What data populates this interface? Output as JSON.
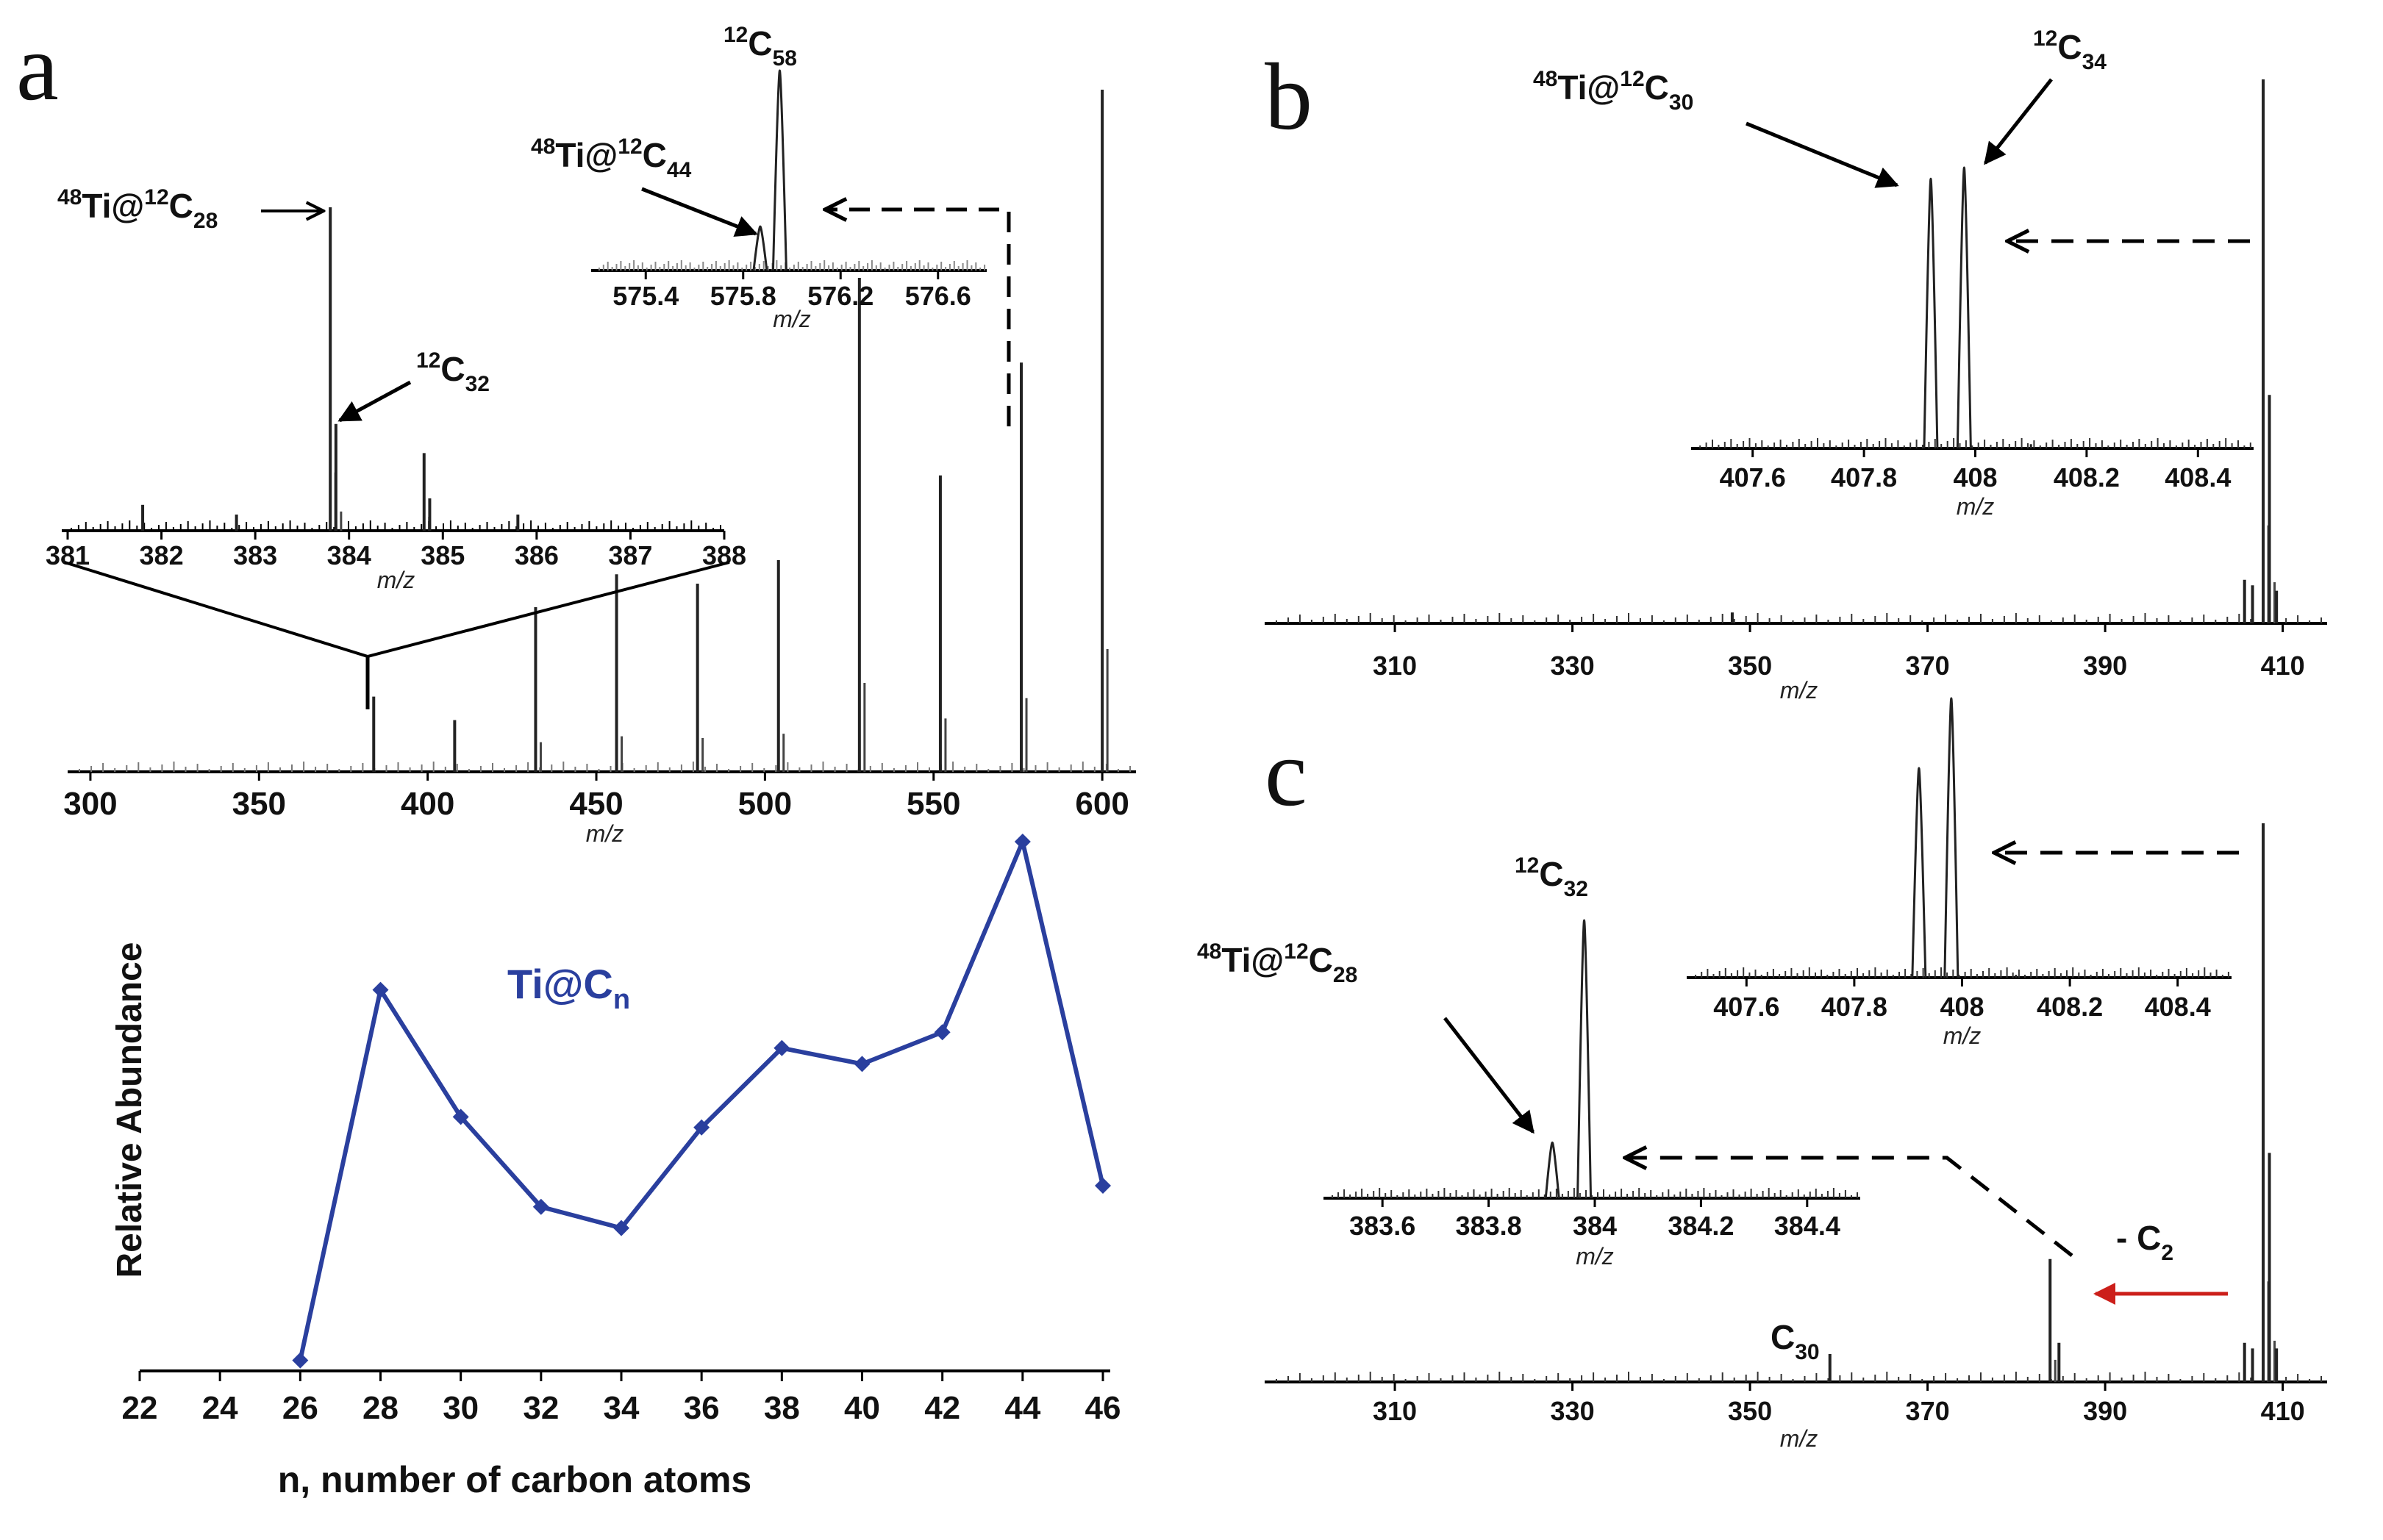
{
  "panels": {
    "a": {
      "label": "a"
    },
    "b": {
      "label": "b"
    },
    "c": {
      "label": "c"
    }
  },
  "annotations": {
    "ti28": {
      "iso": "48",
      "t1": "Ti@",
      "iso2": "12",
      "t2": "C",
      "sub": "28"
    },
    "c32": {
      "iso": "12",
      "t": "C",
      "sub": "32"
    },
    "ti44": {
      "iso": "48",
      "t1": "Ti@",
      "iso2": "12",
      "t2": "C",
      "sub": "44"
    },
    "c58": {
      "iso": "12",
      "t": "C",
      "sub": "58"
    },
    "ti30": {
      "iso": "48",
      "t1": "Ti@",
      "iso2": "12",
      "t2": "C",
      "sub": "30"
    },
    "c34": {
      "iso": "12",
      "t": "C",
      "sub": "34"
    },
    "c_c32": {
      "iso": "12",
      "t": "C",
      "sub": "32"
    },
    "c_ti28": {
      "iso": "48",
      "t1": "Ti@",
      "iso2": "12",
      "t2": "C",
      "sub": "28"
    },
    "c30": {
      "t": "C",
      "sub": "30"
    },
    "minus_c2": {
      "t": "- C",
      "sub": "2",
      "color": "#cc1f1a"
    }
  },
  "chart_data": [
    {
      "id": "a-main",
      "type": "line",
      "title": "",
      "xlabel": "m/z",
      "xlim": [
        295,
        610
      ],
      "xticks": [
        300,
        350,
        400,
        450,
        500,
        550,
        600
      ],
      "peaks": [
        {
          "x": 384,
          "y": 0.16
        },
        {
          "x": 408,
          "y": 0.11
        },
        {
          "x": 432,
          "y": 0.35
        },
        {
          "x": 456,
          "y": 0.42
        },
        {
          "x": 480,
          "y": 0.4
        },
        {
          "x": 504,
          "y": 0.45
        },
        {
          "x": 528,
          "y": 1.05
        },
        {
          "x": 552,
          "y": 0.63
        },
        {
          "x": 576,
          "y": 0.87
        },
        {
          "x": 600,
          "y": 1.45
        }
      ]
    },
    {
      "id": "a-inset-left",
      "type": "line",
      "xlabel": "m/z",
      "xlim": [
        381,
        388
      ],
      "xticks": [
        381,
        382,
        383,
        384,
        385,
        386,
        387,
        388
      ],
      "peaks": [
        {
          "x": 381.8,
          "y": 0.08
        },
        {
          "x": 382.8,
          "y": 0.05
        },
        {
          "x": 383.8,
          "y": 1.0
        },
        {
          "x": 383.86,
          "y": 0.33
        },
        {
          "x": 384.8,
          "y": 0.24
        },
        {
          "x": 384.86,
          "y": 0.1
        },
        {
          "x": 385.8,
          "y": 0.05
        }
      ]
    },
    {
      "id": "a-inset-top",
      "type": "line",
      "xlabel": "m/z",
      "xlim": [
        575.2,
        576.8
      ],
      "xticks": [
        575.4,
        575.8,
        576.2,
        576.6
      ],
      "peaks": [
        {
          "x": 575.87,
          "y": 0.22
        },
        {
          "x": 575.95,
          "y": 1.0
        }
      ]
    },
    {
      "id": "a-bottom",
      "type": "line",
      "title": "Ti@Cn",
      "xlabel": "n, number of carbon atoms",
      "ylabel": "Relative Abundance",
      "xlim": [
        22,
        46
      ],
      "ylim": [
        0,
        1
      ],
      "xticks": [
        22,
        24,
        26,
        28,
        30,
        32,
        34,
        36,
        38,
        40,
        42,
        44,
        46
      ],
      "x": [
        26,
        28,
        30,
        32,
        34,
        36,
        38,
        40,
        42,
        44,
        46
      ],
      "y": [
        0.02,
        0.72,
        0.48,
        0.31,
        0.27,
        0.46,
        0.61,
        0.58,
        0.64,
        1.0,
        0.35
      ],
      "color": "#2a3f9e"
    },
    {
      "id": "b-main",
      "type": "line",
      "xlabel": "m/z",
      "xlim": [
        296,
        415
      ],
      "xticks": [
        310,
        330,
        350,
        370,
        390,
        410
      ],
      "peaks": [
        {
          "x": 348,
          "y": 0.02
        },
        {
          "x": 405.7,
          "y": 0.08
        },
        {
          "x": 406.6,
          "y": 0.07
        },
        {
          "x": 407.8,
          "y": 1.0
        },
        {
          "x": 408.5,
          "y": 0.42
        },
        {
          "x": 409.3,
          "y": 0.06
        }
      ]
    },
    {
      "id": "b-inset",
      "type": "line",
      "xlabel": "m/z",
      "xlim": [
        407.5,
        408.5
      ],
      "xticks": [
        407.6,
        407.8,
        408,
        408.2,
        408.4
      ],
      "peaks": [
        {
          "x": 407.92,
          "y": 0.96
        },
        {
          "x": 407.98,
          "y": 1.0
        },
        {
          "x": 408.1,
          "y": 0.015
        }
      ]
    },
    {
      "id": "c-main",
      "type": "line",
      "xlabel": "m/z",
      "xlim": [
        296,
        415
      ],
      "xticks": [
        310,
        330,
        350,
        370,
        390,
        410
      ],
      "peaks": [
        {
          "x": 359,
          "y": 0.05
        },
        {
          "x": 383.8,
          "y": 0.22
        },
        {
          "x": 384.8,
          "y": 0.07
        },
        {
          "x": 405.7,
          "y": 0.07
        },
        {
          "x": 406.6,
          "y": 0.06
        },
        {
          "x": 407.8,
          "y": 1.0
        },
        {
          "x": 408.5,
          "y": 0.41
        },
        {
          "x": 409.3,
          "y": 0.06
        }
      ]
    },
    {
      "id": "c-inset-top",
      "type": "line",
      "xlabel": "m/z",
      "xlim": [
        407.5,
        408.5
      ],
      "xticks": [
        407.6,
        407.8,
        408,
        408.2,
        408.4
      ],
      "peaks": [
        {
          "x": 407.92,
          "y": 0.75
        },
        {
          "x": 407.98,
          "y": 1.0
        },
        {
          "x": 408.1,
          "y": 0.01
        }
      ]
    },
    {
      "id": "c-inset-left",
      "type": "line",
      "xlabel": "m/z",
      "xlim": [
        383.5,
        384.5
      ],
      "xticks": [
        383.6,
        383.8,
        384,
        384.2,
        384.4
      ],
      "peaks": [
        {
          "x": 383.92,
          "y": 0.2
        },
        {
          "x": 383.98,
          "y": 1.0
        }
      ]
    }
  ]
}
